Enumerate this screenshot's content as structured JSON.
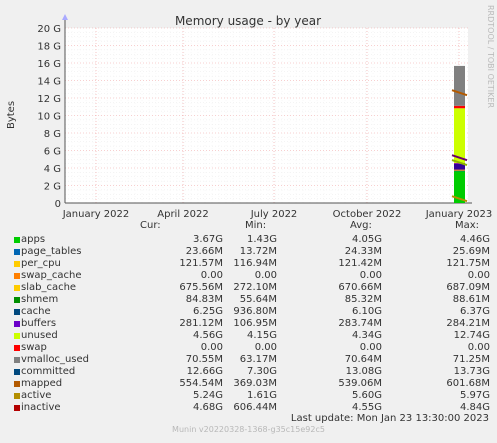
{
  "chart_data": {
    "type": "area",
    "title": "Memory usage - by year",
    "ylabel": "Bytes",
    "y_ticks": [
      "0",
      "2 G",
      "4 G",
      "6 G",
      "8 G",
      "10 G",
      "12 G",
      "14 G",
      "16 G",
      "18 G",
      "20 G"
    ],
    "ylim": [
      0,
      20
    ],
    "x_ticks": [
      "January 2022",
      "April 2022",
      "July 2022",
      "October 2022",
      "January 2023"
    ],
    "grid": true,
    "current_stack": [
      {
        "name": "apps",
        "value_g": 3.67
      },
      {
        "name": "page_tables",
        "value_g": 0.0237
      },
      {
        "name": "per_cpu",
        "value_g": 0.1216
      },
      {
        "name": "swap_cache",
        "value_g": 0.0
      },
      {
        "name": "slab_cache",
        "value_g": 0.676
      },
      {
        "name": "shmem",
        "value_g": 0.085
      },
      {
        "name": "cache",
        "value_g": 6.25
      },
      {
        "name": "buffers",
        "value_g": 0.281
      },
      {
        "name": "unused",
        "value_g": 4.56
      },
      {
        "name": "swap",
        "value_g": 0.0
      }
    ],
    "line_series": [
      {
        "name": "committed",
        "value_g": 12.66
      },
      {
        "name": "mapped",
        "value_g": 0.555
      },
      {
        "name": "active",
        "value_g": 5.24
      },
      {
        "name": "inactive",
        "value_g": 4.68
      }
    ]
  },
  "legend": {
    "headers": {
      "cur": "Cur:",
      "min": "Min:",
      "avg": "Avg:",
      "max": "Max:"
    },
    "rows": [
      {
        "name": "apps",
        "color": "#00cc00",
        "cur": "3.67G",
        "min": "1.43G",
        "avg": "4.05G",
        "max": "4.46G"
      },
      {
        "name": "page_tables",
        "color": "#0066b3",
        "cur": "23.66M",
        "min": "13.72M",
        "avg": "24.33M",
        "max": "25.69M"
      },
      {
        "name": "per_cpu",
        "color": "#ff8000",
        "cur": "121.57M",
        "min": "116.94M",
        "avg": "121.42M",
        "max": "121.75M"
      },
      {
        "name": "swap_cache",
        "color": "#ffcc00",
        "cur": "0.00",
        "min": "0.00",
        "avg": "0.00",
        "max": "0.00"
      },
      {
        "name": "slab_cache",
        "color": "#330099",
        "cur": "675.56M",
        "min": "272.10M",
        "avg": "670.66M",
        "max": "687.09M"
      },
      {
        "name": "shmem",
        "color": "#990099",
        "cur": "84.83M",
        "min": "55.64M",
        "avg": "85.32M",
        "max": "88.61M"
      },
      {
        "name": "cache",
        "color": "#ccff00",
        "cur": "6.25G",
        "min": "936.80M",
        "avg": "6.10G",
        "max": "6.37G"
      },
      {
        "name": "buffers",
        "color": "#ff0000",
        "cur": "281.12M",
        "min": "106.95M",
        "avg": "283.74M",
        "max": "284.21M"
      },
      {
        "name": "unused",
        "color": "#808080",
        "cur": "4.56G",
        "min": "4.15G",
        "avg": "4.34G",
        "max": "12.74G"
      },
      {
        "name": "swap",
        "color": "#008f00",
        "cur": "0.00",
        "min": "0.00",
        "avg": "0.00",
        "max": "0.00"
      },
      {
        "name": "vmalloc_used",
        "color": "#00487d",
        "cur": "70.55M",
        "min": "63.17M",
        "avg": "70.64M",
        "max": "71.25M"
      },
      {
        "name": "committed",
        "color": "#b35a00",
        "cur": "12.66G",
        "min": "7.30G",
        "avg": "13.08G",
        "max": "13.73G"
      },
      {
        "name": "mapped",
        "color": "#b38f00",
        "cur": "554.54M",
        "min": "369.03M",
        "avg": "539.06M",
        "max": "601.68M"
      },
      {
        "name": "active",
        "color": "#6b006b",
        "cur": "5.24G",
        "min": "1.61G",
        "avg": "5.60G",
        "max": "5.97G"
      },
      {
        "name": "inactive",
        "color": "#8fb300",
        "cur": "4.68G",
        "min": "606.44M",
        "avg": "4.55G",
        "max": "4.84G"
      }
    ]
  },
  "swatch_colors": [
    "#00cc00",
    "#0066b3",
    "#ffcc00",
    "#ff8000",
    "#ffcc00",
    "#008f00",
    "#00487d",
    "#6b00c8",
    "#ccff00",
    "#ff0000",
    "#808080",
    "#00487d",
    "#b35a00",
    "#b38f00",
    "#b30000"
  ],
  "last_update": "Last update: Mon Jan 23 13:30:00 2023",
  "munin_version": "Munin v20220328-1368-g35c15e92c5",
  "rrd_label": "RRDTOOL / TOBI OETIKER"
}
